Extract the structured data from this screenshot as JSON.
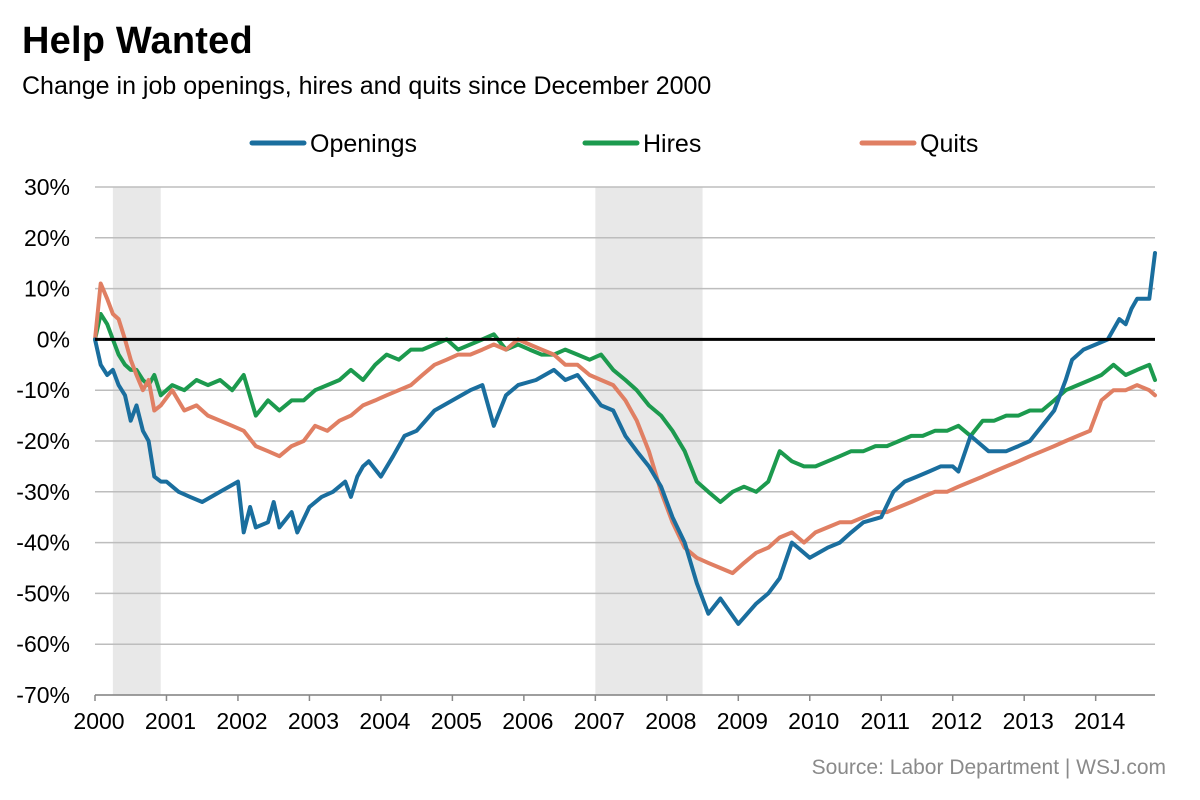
{
  "header": {
    "title": "Help Wanted",
    "subtitle": "Change in job openings, hires and quits since December 2000"
  },
  "footer": {
    "source": "Source: Labor Department  |  WSJ.com"
  },
  "chart_data": {
    "type": "line",
    "title": "Help Wanted",
    "subtitle": "Change in job openings, hires and quits since December 2000",
    "legend_placement": "top",
    "grid": true,
    "ylim": [
      -70,
      30
    ],
    "yticks": [
      30,
      20,
      10,
      0,
      -10,
      -20,
      -30,
      -40,
      -50,
      -60,
      -70
    ],
    "ytick_labels": [
      "30%",
      "20%",
      "10%",
      "0%",
      "-10%",
      "-20%",
      "-30%",
      "-40%",
      "-50%",
      "-60%",
      "-70%"
    ],
    "xlim": [
      2000,
      2014.83
    ],
    "xticks": [
      2000,
      2001,
      2002,
      2003,
      2004,
      2005,
      2006,
      2007,
      2008,
      2009,
      2010,
      2011,
      2012,
      2013,
      2014
    ],
    "xtick_labels": [
      "2000",
      "2001",
      "2002",
      "2003",
      "2004",
      "2005",
      "2006",
      "2007",
      "2008",
      "2009",
      "2010",
      "2011",
      "2012",
      "2013",
      "2014"
    ],
    "recessions": [
      [
        2000.25,
        2000.92
      ],
      [
        2007.0,
        2008.5
      ]
    ],
    "recession_color": "#e8e8e8",
    "zero_line_color": "#000000",
    "series": [
      {
        "name": "Openings",
        "color": "#1a6e9e",
        "x": [
          2000.0,
          2000.08,
          2000.17,
          2000.25,
          2000.33,
          2000.42,
          2000.5,
          2000.58,
          2000.67,
          2000.75,
          2000.83,
          2000.92,
          2001.0,
          2001.17,
          2001.33,
          2001.5,
          2001.75,
          2002.0,
          2002.08,
          2002.17,
          2002.25,
          2002.42,
          2002.5,
          2002.58,
          2002.75,
          2002.83,
          2003.0,
          2003.17,
          2003.33,
          2003.5,
          2003.58,
          2003.67,
          2003.75,
          2003.83,
          2004.0,
          2004.17,
          2004.33,
          2004.5,
          2004.75,
          2005.0,
          2005.25,
          2005.42,
          2005.58,
          2005.75,
          2005.92,
          2006.17,
          2006.42,
          2006.58,
          2006.75,
          2006.92,
          2007.08,
          2007.25,
          2007.42,
          2007.58,
          2007.75,
          2007.92,
          2008.08,
          2008.25,
          2008.42,
          2008.58,
          2008.75,
          2009.0,
          2009.25,
          2009.42,
          2009.58,
          2009.75,
          2010.0,
          2010.25,
          2010.42,
          2010.58,
          2010.75,
          2011.0,
          2011.17,
          2011.33,
          2011.5,
          2011.67,
          2011.83,
          2012.0,
          2012.08,
          2012.25,
          2012.5,
          2012.75,
          2012.92,
          2013.08,
          2013.25,
          2013.42,
          2013.58,
          2013.67,
          2013.83,
          2014.0,
          2014.17,
          2014.33,
          2014.42,
          2014.5,
          2014.58,
          2014.67,
          2014.75,
          2014.83
        ],
        "values": [
          0,
          -5,
          -7,
          -6,
          -9,
          -11,
          -16,
          -13,
          -18,
          -20,
          -27,
          -28,
          -28,
          -30,
          -31,
          -32,
          -30,
          -28,
          -38,
          -33,
          -37,
          -36,
          -32,
          -37,
          -34,
          -38,
          -33,
          -31,
          -30,
          -28,
          -31,
          -27,
          -25,
          -24,
          -27,
          -23,
          -19,
          -18,
          -14,
          -12,
          -10,
          -9,
          -17,
          -11,
          -9,
          -8,
          -6,
          -8,
          -7,
          -10,
          -13,
          -14,
          -19,
          -22,
          -25,
          -29,
          -35,
          -40,
          -48,
          -54,
          -51,
          -56,
          -52,
          -50,
          -47,
          -40,
          -43,
          -41,
          -40,
          -38,
          -36,
          -35,
          -30,
          -28,
          -27,
          -26,
          -25,
          -25,
          -26,
          -19,
          -22,
          -22,
          -21,
          -20,
          -17,
          -14,
          -8,
          -4,
          -2,
          -1,
          0,
          4,
          3,
          6,
          8,
          8,
          8,
          17
        ]
      },
      {
        "name": "Hires",
        "color": "#1c9a4e",
        "x": [
          2000.0,
          2000.08,
          2000.17,
          2000.25,
          2000.33,
          2000.42,
          2000.5,
          2000.58,
          2000.67,
          2000.75,
          2000.83,
          2000.92,
          2001.08,
          2001.25,
          2001.42,
          2001.58,
          2001.75,
          2001.92,
          2002.08,
          2002.25,
          2002.42,
          2002.58,
          2002.75,
          2002.92,
          2003.08,
          2003.25,
          2003.42,
          2003.58,
          2003.75,
          2003.92,
          2004.08,
          2004.25,
          2004.42,
          2004.58,
          2004.75,
          2004.92,
          2005.08,
          2005.25,
          2005.42,
          2005.58,
          2005.75,
          2005.92,
          2006.08,
          2006.25,
          2006.42,
          2006.58,
          2006.75,
          2006.92,
          2007.08,
          2007.25,
          2007.42,
          2007.58,
          2007.75,
          2007.92,
          2008.08,
          2008.25,
          2008.42,
          2008.58,
          2008.75,
          2008.92,
          2009.08,
          2009.25,
          2009.42,
          2009.58,
          2009.75,
          2009.92,
          2010.08,
          2010.25,
          2010.42,
          2010.58,
          2010.75,
          2010.92,
          2011.08,
          2011.25,
          2011.42,
          2011.58,
          2011.75,
          2011.92,
          2012.08,
          2012.25,
          2012.42,
          2012.58,
          2012.75,
          2012.92,
          2013.08,
          2013.25,
          2013.42,
          2013.58,
          2013.75,
          2013.92,
          2014.08,
          2014.25,
          2014.42,
          2014.58,
          2014.75,
          2014.83
        ],
        "values": [
          0,
          5,
          3,
          0,
          -3,
          -5,
          -6,
          -6,
          -8,
          -9,
          -7,
          -11,
          -9,
          -10,
          -8,
          -9,
          -8,
          -10,
          -7,
          -15,
          -12,
          -14,
          -12,
          -12,
          -10,
          -9,
          -8,
          -6,
          -8,
          -5,
          -3,
          -4,
          -2,
          -2,
          -1,
          0,
          -2,
          -1,
          0,
          1,
          -2,
          -1,
          -2,
          -3,
          -3,
          -2,
          -3,
          -4,
          -3,
          -6,
          -8,
          -10,
          -13,
          -15,
          -18,
          -22,
          -28,
          -30,
          -32,
          -30,
          -29,
          -30,
          -28,
          -22,
          -24,
          -25,
          -25,
          -24,
          -23,
          -22,
          -22,
          -21,
          -21,
          -20,
          -19,
          -19,
          -18,
          -18,
          -17,
          -19,
          -16,
          -16,
          -15,
          -15,
          -14,
          -14,
          -12,
          -10,
          -9,
          -8,
          -7,
          -5,
          -7,
          -6,
          -5,
          -8
        ]
      },
      {
        "name": "Quits",
        "color": "#e07f63",
        "x": [
          2000.0,
          2000.08,
          2000.17,
          2000.25,
          2000.33,
          2000.42,
          2000.5,
          2000.58,
          2000.67,
          2000.75,
          2000.83,
          2000.92,
          2001.08,
          2001.25,
          2001.42,
          2001.58,
          2001.75,
          2001.92,
          2002.08,
          2002.25,
          2002.42,
          2002.58,
          2002.75,
          2002.92,
          2003.08,
          2003.25,
          2003.42,
          2003.58,
          2003.75,
          2003.92,
          2004.08,
          2004.25,
          2004.42,
          2004.58,
          2004.75,
          2004.92,
          2005.08,
          2005.25,
          2005.42,
          2005.58,
          2005.75,
          2005.92,
          2006.08,
          2006.25,
          2006.42,
          2006.58,
          2006.75,
          2006.92,
          2007.08,
          2007.25,
          2007.42,
          2007.58,
          2007.75,
          2007.92,
          2008.08,
          2008.25,
          2008.42,
          2008.58,
          2008.75,
          2008.92,
          2009.08,
          2009.25,
          2009.42,
          2009.58,
          2009.75,
          2009.92,
          2010.08,
          2010.25,
          2010.42,
          2010.58,
          2010.75,
          2010.92,
          2011.08,
          2011.25,
          2011.42,
          2011.58,
          2011.75,
          2011.92,
          2012.08,
          2012.25,
          2012.42,
          2012.58,
          2012.75,
          2012.92,
          2013.08,
          2013.25,
          2013.42,
          2013.58,
          2013.75,
          2013.92,
          2014.08,
          2014.25,
          2014.42,
          2014.58,
          2014.75,
          2014.83
        ],
        "values": [
          0,
          11,
          8,
          5,
          4,
          0,
          -4,
          -7,
          -10,
          -8,
          -14,
          -13,
          -10,
          -14,
          -13,
          -15,
          -16,
          -17,
          -18,
          -21,
          -22,
          -23,
          -21,
          -20,
          -17,
          -18,
          -16,
          -15,
          -13,
          -12,
          -11,
          -10,
          -9,
          -7,
          -5,
          -4,
          -3,
          -3,
          -2,
          -1,
          -2,
          0,
          -1,
          -2,
          -3,
          -5,
          -5,
          -7,
          -8,
          -9,
          -12,
          -16,
          -22,
          -30,
          -36,
          -41,
          -43,
          -44,
          -45,
          -46,
          -44,
          -42,
          -41,
          -39,
          -38,
          -40,
          -38,
          -37,
          -36,
          -36,
          -35,
          -34,
          -34,
          -33,
          -32,
          -31,
          -30,
          -30,
          -29,
          -28,
          -27,
          -26,
          -25,
          -24,
          -23,
          -22,
          -21,
          -20,
          -19,
          -18,
          -12,
          -10,
          -10,
          -9,
          -10,
          -11
        ]
      }
    ]
  }
}
